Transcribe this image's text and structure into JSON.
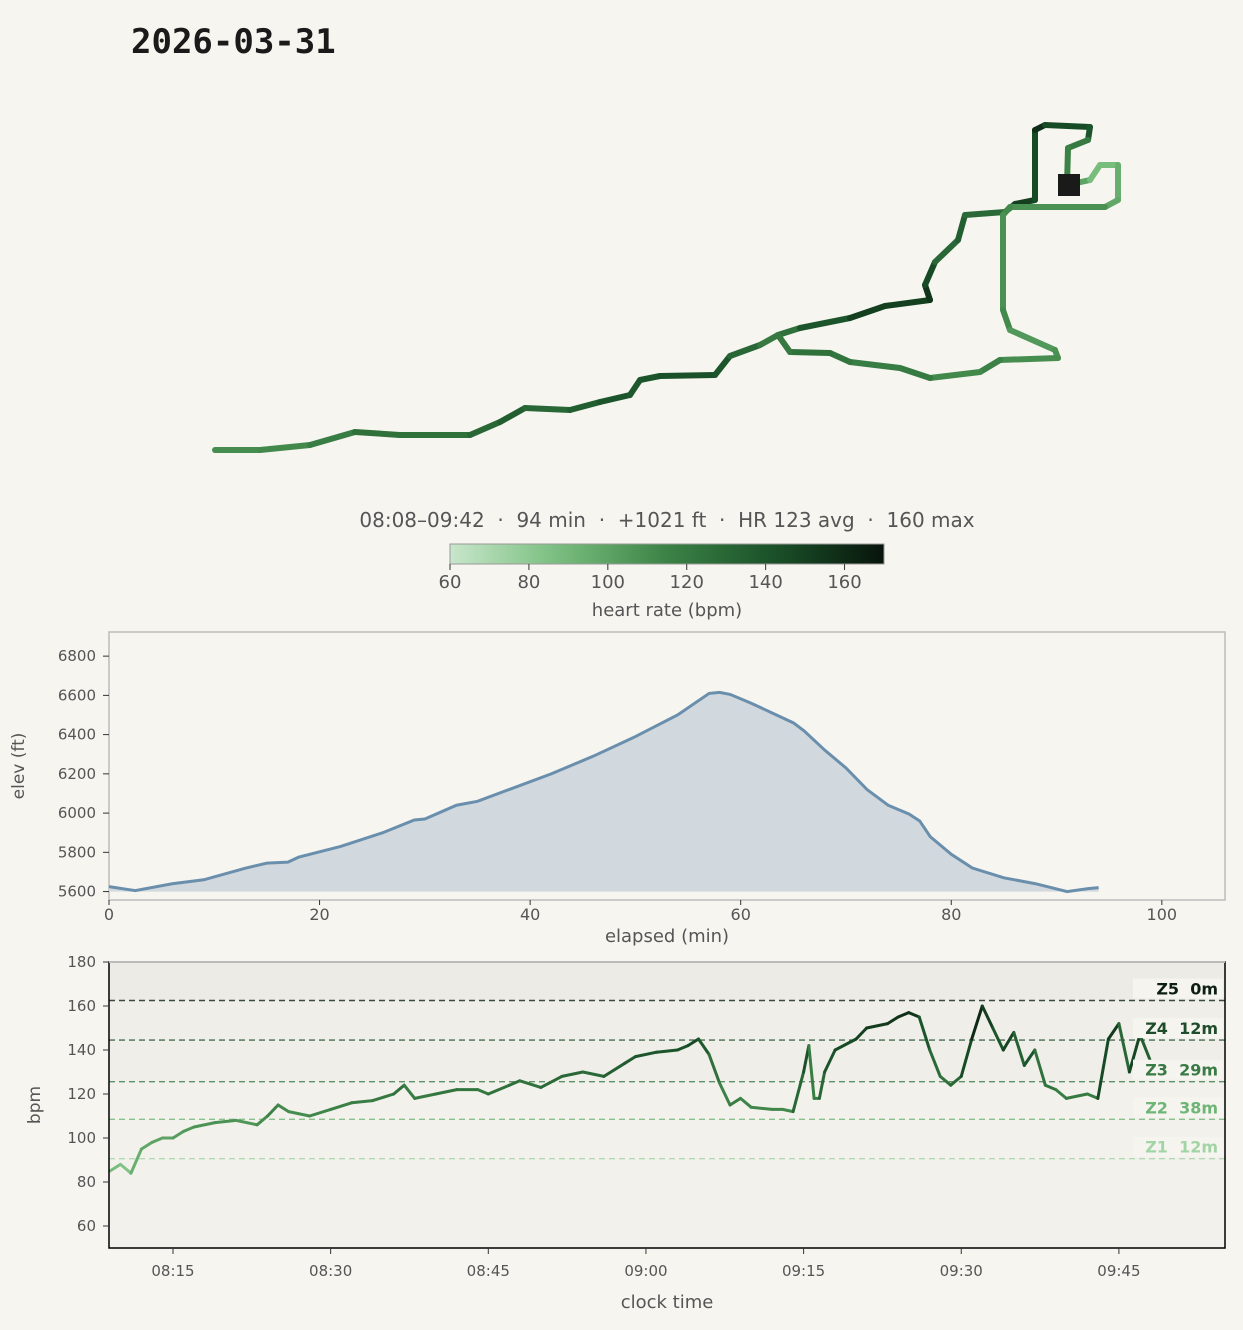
{
  "title": "2026-03-31",
  "summary": "08:08–09:42  ·  94 min  ·  +1021 ft  ·  HR 123 avg  ·  160 max",
  "colors": {
    "elev_line": "#6a8fad",
    "elev_fill": "#d2d9de",
    "hr_low": "#c8e6cc",
    "hr_high": "#08140c",
    "marker": "#1a1a1a"
  },
  "chart_data": [
    {
      "type": "heatmap",
      "title": "heart rate (bpm)",
      "label": "heart rate (bpm)",
      "range": [
        60,
        170
      ],
      "ticks": [
        60,
        80,
        100,
        120,
        140,
        160
      ]
    },
    {
      "type": "area",
      "xlabel": "elapsed (min)",
      "ylabel": "elev (ft)",
      "xlim": [
        0,
        106
      ],
      "ylim": [
        5557,
        6923
      ],
      "xticks": [
        0,
        20,
        40,
        60,
        80,
        100
      ],
      "yticks": [
        5600,
        5800,
        6000,
        6200,
        6400,
        6600,
        6800
      ],
      "x": [
        0,
        2.5,
        6,
        9,
        13,
        15,
        17,
        18,
        22,
        26,
        29,
        30,
        33,
        35,
        38,
        42,
        46,
        50,
        54,
        57,
        58,
        59,
        61,
        65,
        66,
        68,
        70,
        72,
        74,
        76,
        77,
        78,
        80,
        82,
        85,
        88,
        91,
        93,
        94
      ],
      "y": [
        5625,
        5605,
        5640,
        5660,
        5720,
        5745,
        5750,
        5775,
        5830,
        5900,
        5965,
        5970,
        6040,
        6060,
        6120,
        6200,
        6290,
        6390,
        6500,
        6610,
        6615,
        6605,
        6560,
        6460,
        6420,
        6320,
        6230,
        6120,
        6040,
        5995,
        5960,
        5880,
        5790,
        5720,
        5670,
        5640,
        5600,
        5615,
        5620
      ]
    },
    {
      "type": "line",
      "xlabel": "clock time",
      "ylabel": "bpm",
      "ylim": [
        50,
        180
      ],
      "yticks": [
        60,
        80,
        100,
        120,
        140,
        160,
        180
      ],
      "xticks": [
        "08:15",
        "08:30",
        "08:45",
        "09:00",
        "09:15",
        "09:30",
        "09:45"
      ],
      "x_minutes_after_0800": [
        9,
        10,
        11,
        12,
        13,
        14,
        15,
        16,
        17,
        19,
        21,
        23,
        24,
        25,
        26,
        28,
        30,
        32,
        34,
        36,
        37,
        38,
        40,
        42,
        44,
        45,
        47,
        48,
        50,
        52,
        54,
        56,
        58,
        59,
        61,
        63,
        64,
        65,
        66,
        67,
        68,
        69,
        70,
        72,
        73,
        74,
        75,
        75.5,
        76,
        76.5,
        77,
        78,
        80,
        81,
        83,
        84,
        85,
        86,
        87,
        88,
        89,
        90,
        91,
        92,
        93,
        94,
        95,
        96,
        97,
        98,
        99,
        100,
        102,
        103,
        104,
        105,
        106,
        107,
        108,
        109
      ],
      "bpm": [
        85,
        88,
        84,
        95,
        98,
        100,
        100,
        103,
        105,
        107,
        108,
        106,
        110,
        115,
        112,
        110,
        113,
        116,
        117,
        120,
        124,
        118,
        120,
        122,
        122,
        120,
        124,
        126,
        123,
        128,
        130,
        128,
        134,
        137,
        139,
        140,
        142,
        145,
        138,
        125,
        115,
        118,
        114,
        113,
        113,
        112,
        130,
        142,
        118,
        118,
        130,
        140,
        145,
        150,
        152,
        155,
        157,
        155,
        140,
        128,
        124,
        128,
        145,
        160,
        150,
        140,
        148,
        133,
        140,
        124,
        122,
        118,
        120,
        118,
        145,
        152,
        130,
        147,
        135,
        132
      ],
      "zones": [
        {
          "name": "Z5",
          "time": "0m",
          "bpm": 162.5,
          "color": "#0d1f13"
        },
        {
          "name": "Z4",
          "time": "12m",
          "bpm": 144.5,
          "color": "#1f4d2b"
        },
        {
          "name": "Z3",
          "time": "29m",
          "bpm": 125.6,
          "color": "#3a7a45"
        },
        {
          "name": "Z2",
          "time": "38m",
          "bpm": 108.5,
          "color": "#6fb575"
        },
        {
          "name": "Z1",
          "time": "12m",
          "bpm": 90.6,
          "color": "#a3d4a6"
        }
      ]
    }
  ]
}
